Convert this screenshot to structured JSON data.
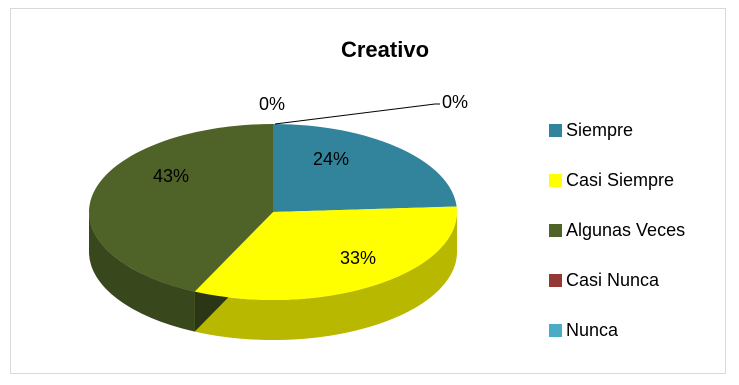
{
  "chart_data": {
    "type": "pie",
    "title": "Creativo",
    "categories": [
      "Siempre",
      "Casi Siempre",
      "Algunas Veces",
      "Casi Nunca",
      "Nunca"
    ],
    "values": [
      24,
      33,
      43,
      0,
      0
    ],
    "data_labels": [
      "24%",
      "33%",
      "43%",
      "0%",
      "0%"
    ],
    "colors": [
      "#31849b",
      "#ffff00",
      "#4f6228",
      "#953735",
      "#4bacc6"
    ],
    "legend_position": "right",
    "style": "3d-pie"
  }
}
